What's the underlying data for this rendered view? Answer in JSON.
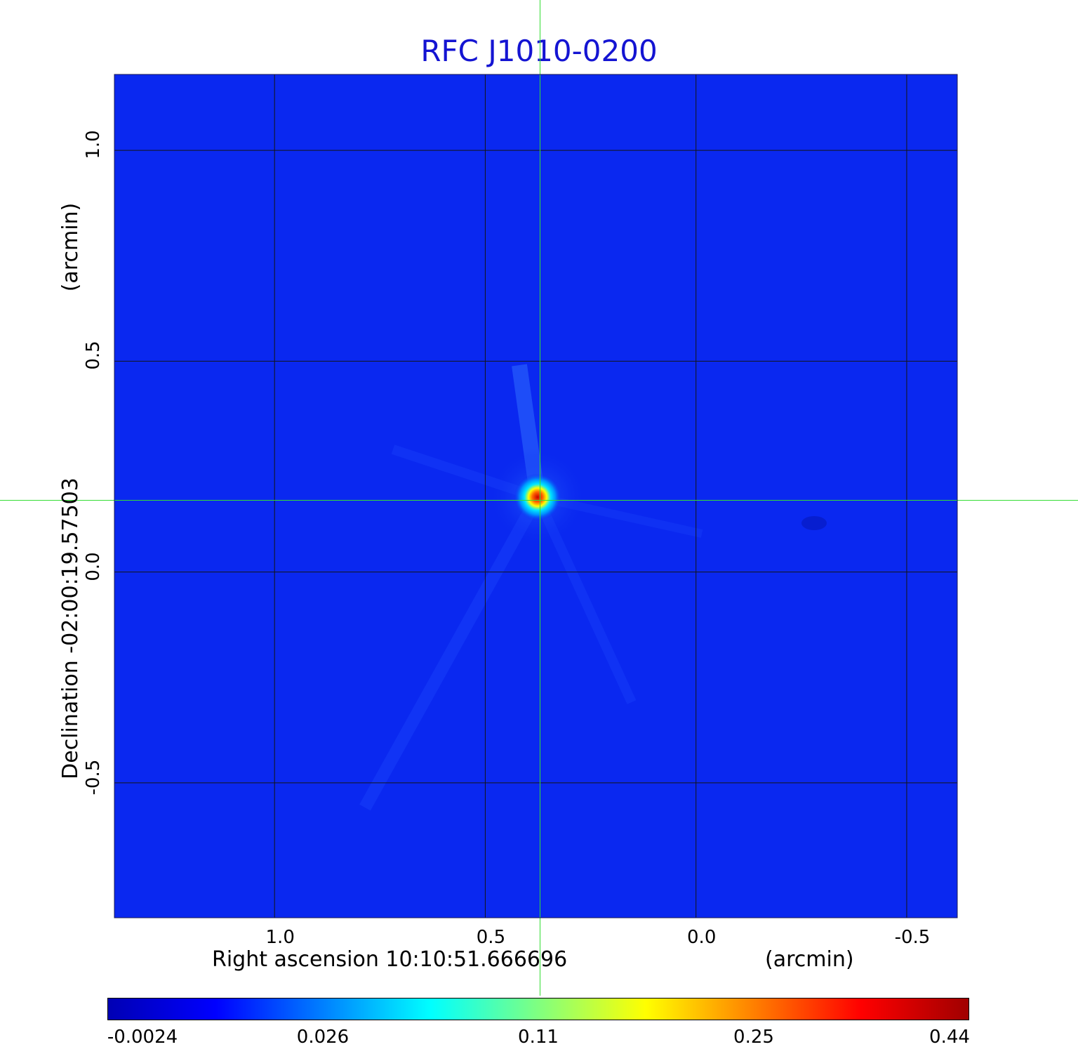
{
  "chart_data": {
    "type": "heatmap",
    "title": "RFC J1010-0200",
    "xlabel": "Right ascension  10:10:51.666696",
    "xunit": "(arcmin)",
    "ylabel": "Declination  -02:00:19.57503",
    "yunit": "(arcmin)",
    "x_ticks": [
      1.0,
      0.5,
      0.0,
      -0.5
    ],
    "x_tick_labels": [
      "1.0",
      "0.5",
      "0.0",
      "-0.5"
    ],
    "y_ticks": [
      1.0,
      0.5,
      0.0,
      -0.5
    ],
    "y_tick_labels": [
      "1.0",
      "0.5",
      "0.0",
      "-0.5"
    ],
    "xlim": [
      1.38,
      -0.62
    ],
    "ylim": [
      -0.82,
      1.18
    ],
    "grid": true,
    "crosshair": {
      "x": 0.37,
      "y": 0.17,
      "color": "#33dd33"
    },
    "source_peak": {
      "x": 0.37,
      "y": 0.17,
      "value": 0.44
    },
    "colorbar": {
      "ticks": [
        -0.0024,
        0.026,
        0.11,
        0.25,
        0.44
      ],
      "tick_labels": [
        "-0.0024",
        "0.026",
        "0.11",
        "0.25",
        "0.44"
      ],
      "colormap": "jet",
      "colors": [
        "#0000b4",
        "#0000ff",
        "#0080ff",
        "#00ffff",
        "#80ff80",
        "#ffff00",
        "#ff8000",
        "#ff0000",
        "#a00000"
      ]
    },
    "background_color": "#0a28f0"
  }
}
